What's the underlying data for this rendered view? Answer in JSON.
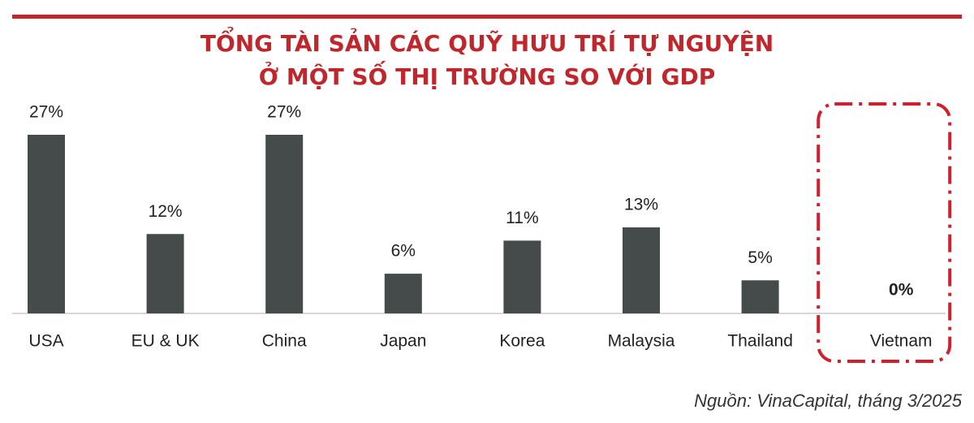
{
  "chart_data": {
    "type": "bar",
    "title": [
      "TỔNG TÀI SẢN CÁC QUỸ HƯU TRÍ TỰ NGUYỆN",
      "Ở MỘT SỐ THỊ TRƯỜNG SO VỚI GDP"
    ],
    "categories": [
      "USA",
      "EU & UK",
      "China",
      "Japan",
      "Korea",
      "Malaysia",
      "Thailand",
      "Vietnam"
    ],
    "values": [
      27,
      12,
      27,
      6,
      11,
      13,
      5,
      0
    ],
    "value_labels": [
      "27%",
      "12%",
      "27%",
      "6%",
      "11%",
      "13%",
      "5%",
      "0%"
    ],
    "color": "#454a4a",
    "colors": [
      "#454a4a",
      "#454a4a",
      "#454a4a",
      "#454a4a",
      "#454a4a",
      "#454a4a",
      "#454a4a",
      "#d0202e"
    ],
    "source": "Nguồn: VinaCapital, tháng 3/2025"
  }
}
